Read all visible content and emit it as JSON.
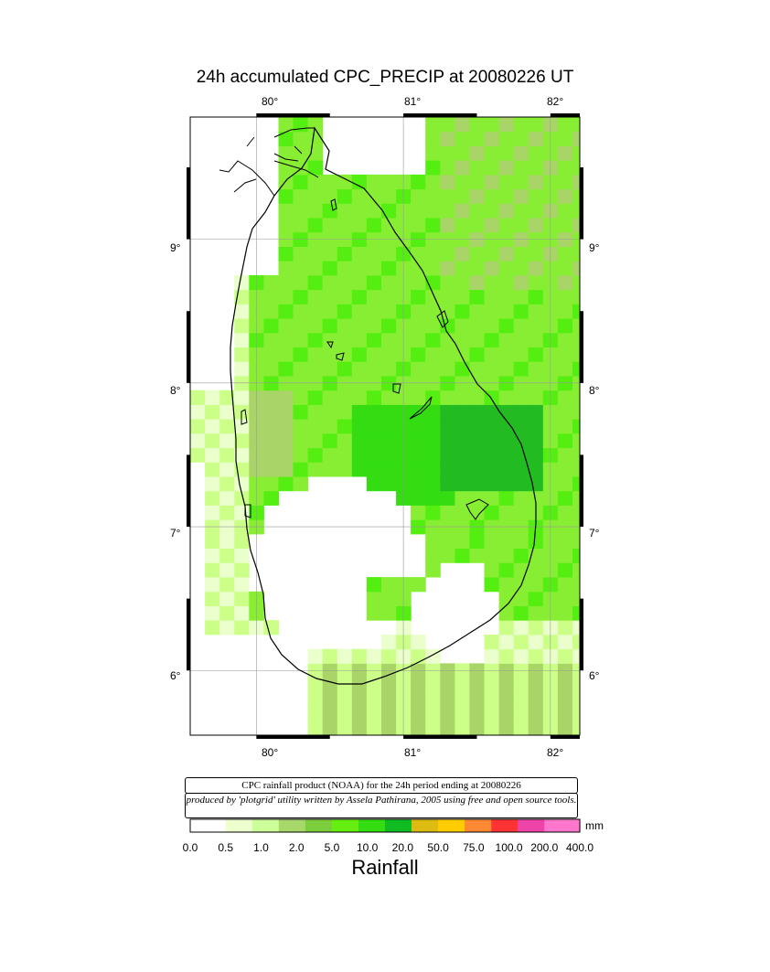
{
  "title": "24h accumulated CPC_PRECIP  at 20080226 UT",
  "axes": {
    "top_lon_labels": [
      "80°",
      "81°",
      "82°"
    ],
    "bottom_lon_labels": [
      "80°",
      "81°",
      "82°"
    ],
    "left_lat_labels": [
      "9°",
      "8°",
      "7°",
      "6°"
    ],
    "right_lat_labels": [
      "9°",
      "8°",
      "7°",
      "6°"
    ],
    "lon_range": [
      79.55,
      82.2
    ],
    "lat_range": [
      5.55,
      9.85
    ]
  },
  "info_box": {
    "line1": "CPC rainfall product (NOAA) for the 24h period ending at 20080226",
    "line2": "produced by 'plotgrid' utility written by Assela Pathirana, 2005 using free and open source tools."
  },
  "colorbar": {
    "unit": "mm",
    "labels": [
      "0.0",
      "0.5",
      "1.0",
      "2.0",
      "5.0",
      "10.0",
      "20.0",
      "50.0",
      "75.0",
      "100.0",
      "200.0",
      "400.0"
    ],
    "colors": [
      "#ffffff",
      "#ecffcc",
      "#ccff99",
      "#a6d96a",
      "#7ccd3c",
      "#66ee11",
      "#33dd11",
      "#11bb22",
      "#ddbb11",
      "#ffcc00",
      "#ff8833",
      "#ff3333",
      "#ee44aa",
      "#ff77cc"
    ],
    "caption": "Rainfall"
  },
  "palette": {
    "white": "#ffffff",
    "very_light": "#eaffcc",
    "light": "#ccff88",
    "olive": "#a8d468",
    "medium": "#88ee33",
    "bright": "#55ee11",
    "strong": "#33dd11",
    "dark": "#22bb22"
  }
}
